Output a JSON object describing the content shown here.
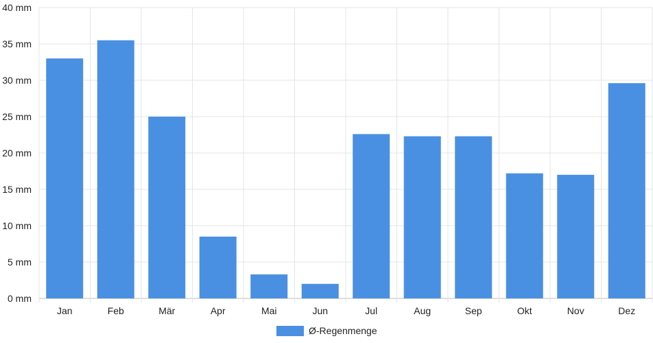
{
  "chart_data": {
    "type": "bar",
    "categories": [
      "Jan",
      "Feb",
      "Mär",
      "Apr",
      "Mai",
      "Jun",
      "Jul",
      "Aug",
      "Sep",
      "Okt",
      "Nov",
      "Dez"
    ],
    "series": [
      {
        "name": "Ø-Regenmenge",
        "values": [
          33.0,
          35.5,
          25.0,
          8.5,
          3.3,
          2.0,
          22.6,
          22.3,
          22.3,
          17.2,
          17.0,
          29.6
        ],
        "color": "#4a90e2"
      }
    ],
    "yticks": [
      "0 mm",
      "5 mm",
      "10 mm",
      "15 mm",
      "20 mm",
      "25 mm",
      "30 mm",
      "35 mm",
      "40 mm"
    ],
    "ylim": [
      0,
      40
    ],
    "xlabel": "",
    "ylabel": "",
    "title": "",
    "grid": true,
    "legend_position": "bottom"
  }
}
